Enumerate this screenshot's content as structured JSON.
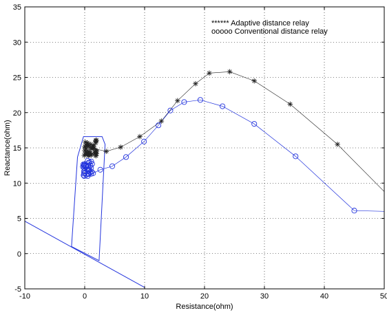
{
  "chart_data": {
    "type": "line",
    "title": "",
    "xlabel": "Resistance(ohm)",
    "ylabel": "Reactance(ohm)",
    "xlim": [
      -10,
      50
    ],
    "ylim": [
      -5,
      35
    ],
    "xticks": [
      "-10",
      "0",
      "10",
      "20",
      "30",
      "40",
      "50"
    ],
    "yticks": [
      "-5",
      "0",
      "5",
      "10",
      "15",
      "20",
      "25",
      "30",
      "35"
    ],
    "grid": true,
    "legend_position": "top-right",
    "legend": [
      "****** Adaptive distance relay",
      "ooooo Conventional distance relay"
    ],
    "colors": {
      "adaptive": "#222222",
      "conventional": "#2233dd",
      "characteristic": "#2233dd"
    },
    "series": [
      {
        "name": "Adaptive distance relay",
        "marker": "*",
        "color": "#222222",
        "points": [
          [
            0.0,
            14.6
          ],
          [
            1.5,
            14.9
          ],
          [
            3.6,
            14.5
          ],
          [
            6.0,
            15.1
          ],
          [
            9.2,
            16.6
          ],
          [
            12.8,
            18.8
          ],
          [
            15.5,
            21.7
          ],
          [
            18.5,
            24.1
          ],
          [
            20.8,
            25.6
          ],
          [
            24.2,
            25.8
          ],
          [
            28.3,
            24.5
          ],
          [
            34.3,
            21.2
          ],
          [
            42.2,
            15.5
          ],
          [
            50.0,
            8.8
          ]
        ],
        "cluster": {
          "x": [
            -0.1,
            2.0
          ],
          "y": [
            13.8,
            16.2
          ],
          "count": 40
        }
      },
      {
        "name": "Conventional distance relay",
        "marker": "o",
        "color": "#2233dd",
        "points": [
          [
            0.5,
            11.0
          ],
          [
            1.4,
            11.4
          ],
          [
            2.6,
            11.9
          ],
          [
            4.6,
            12.4
          ],
          [
            6.9,
            13.7
          ],
          [
            9.9,
            15.9
          ],
          [
            12.3,
            18.2
          ],
          [
            14.3,
            20.3
          ],
          [
            16.6,
            21.5
          ],
          [
            19.3,
            21.8
          ],
          [
            23.0,
            20.9
          ],
          [
            28.3,
            18.4
          ],
          [
            35.2,
            13.8
          ],
          [
            45.0,
            6.1
          ],
          [
            50.0,
            6.0
          ]
        ],
        "cluster": {
          "x": [
            -0.3,
            1.4
          ],
          "y": [
            10.8,
            13.2
          ],
          "count": 35
        }
      }
    ],
    "characteristic": {
      "polygon": [
        [
          -2.2,
          1.0
        ],
        [
          -1.2,
          13.7
        ],
        [
          -0.2,
          16.6
        ],
        [
          2.9,
          16.6
        ],
        [
          3.4,
          15.5
        ],
        [
          2.4,
          -1.0
        ]
      ],
      "line": [
        [
          -10,
          4.6
        ],
        [
          10,
          -4.8
        ]
      ]
    }
  }
}
